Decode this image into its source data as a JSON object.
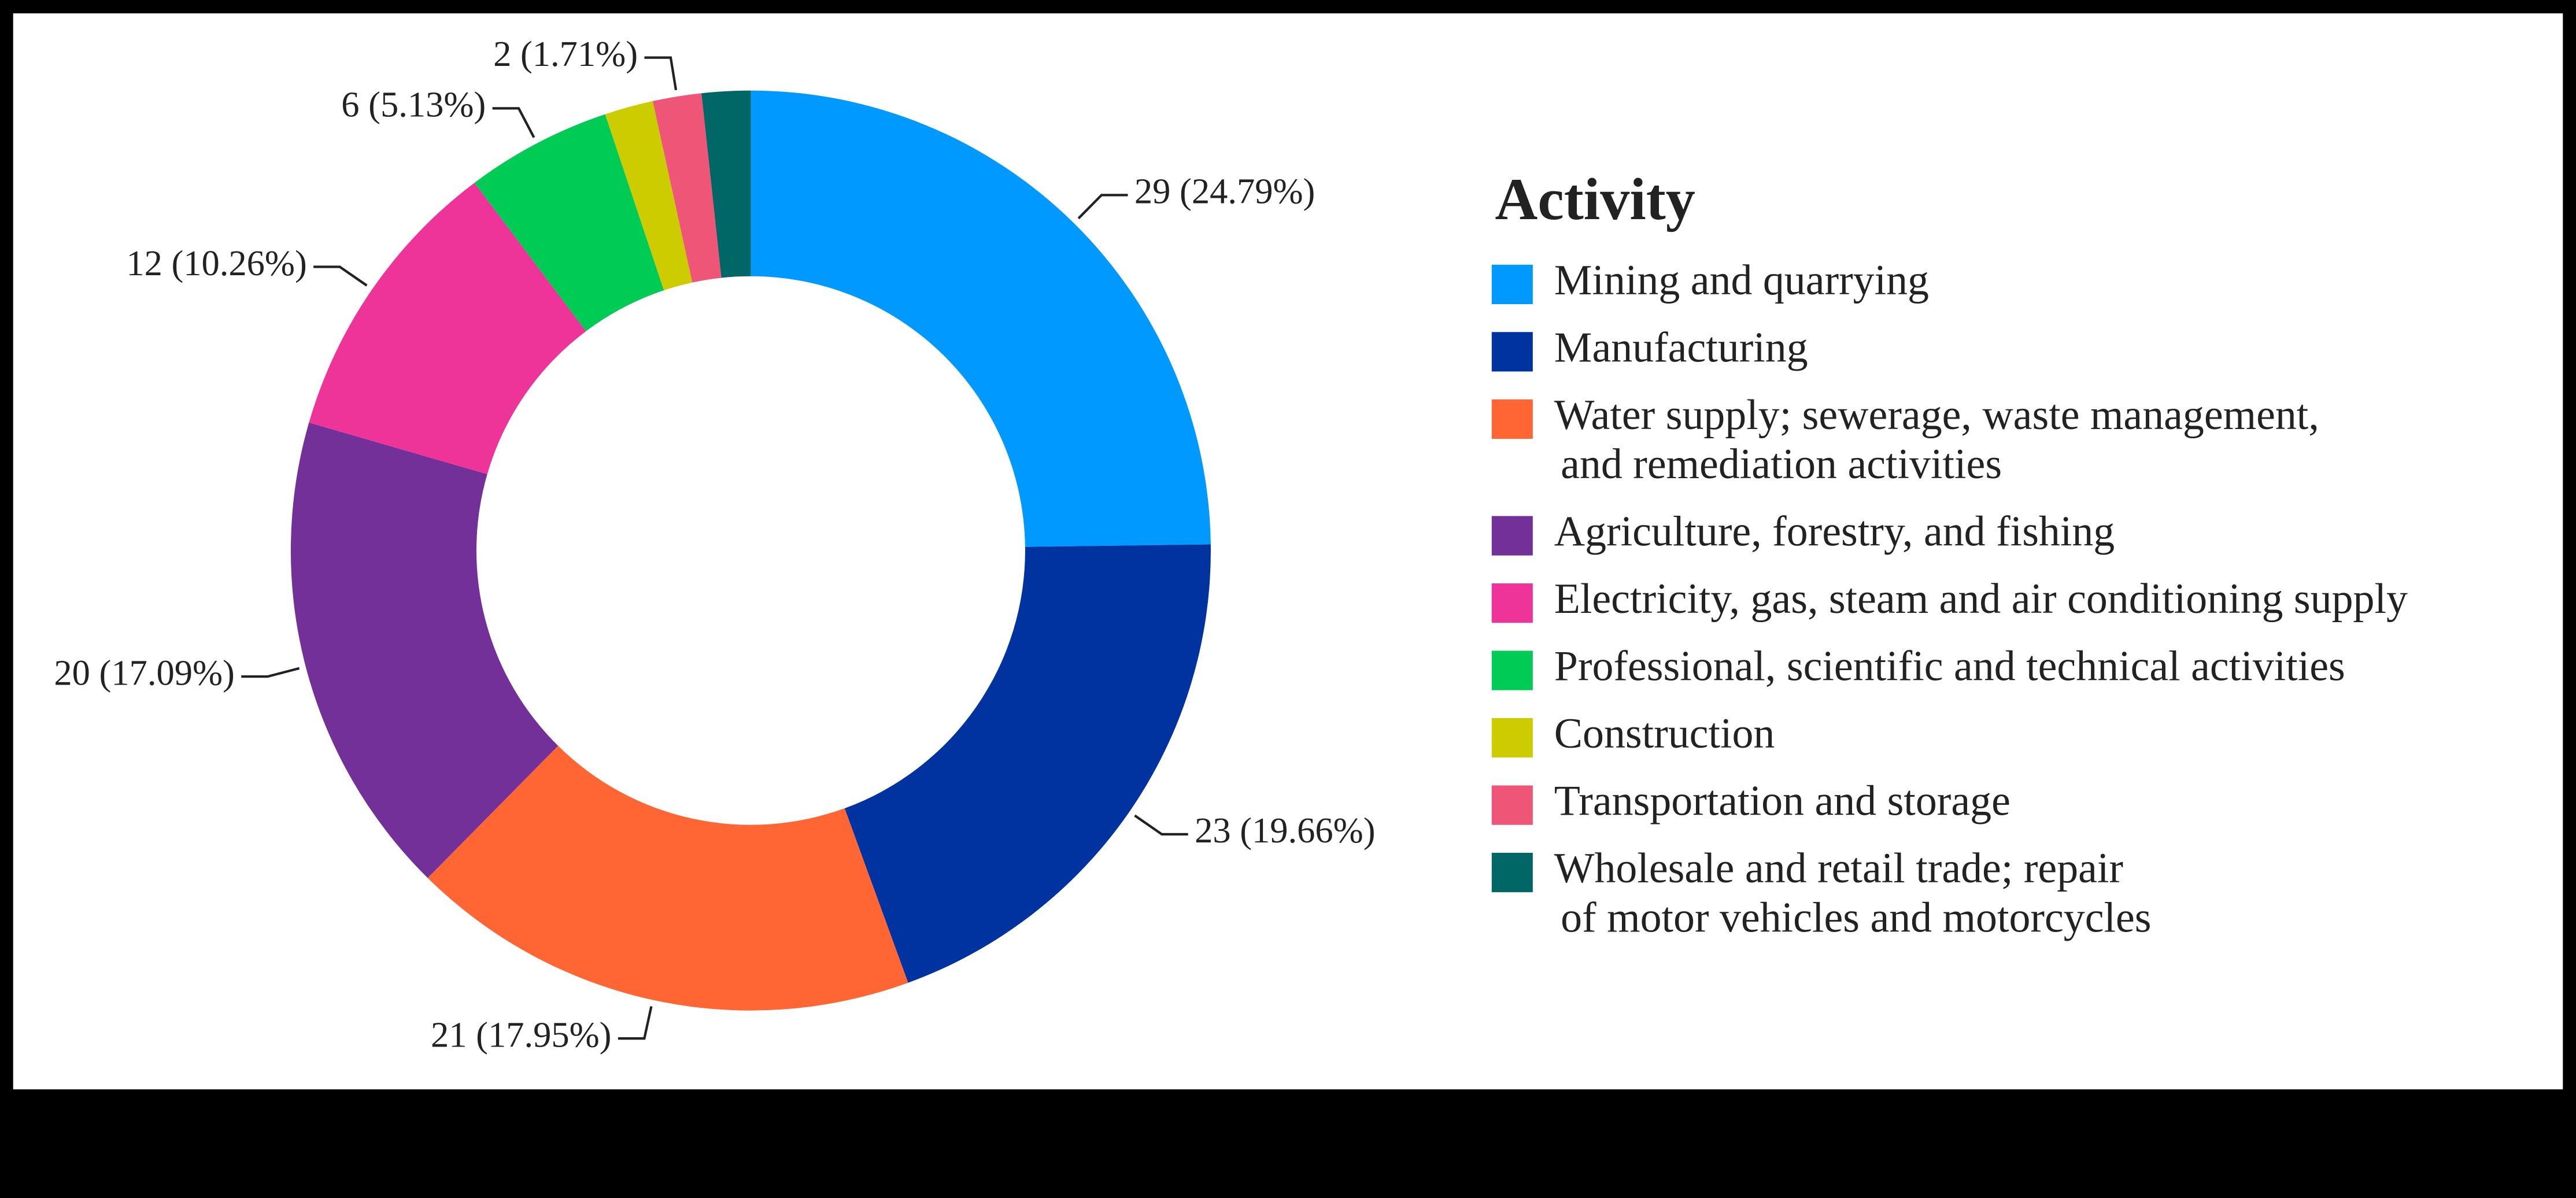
{
  "chart_data": {
    "type": "donut",
    "legend_title": "Activity",
    "categories": [
      "Mining and quarrying",
      "Manufacturing",
      "Water supply; sewerage, waste management,\nand remediation activities",
      "Agriculture, forestry, and fishing",
      "Electricity, gas, steam and air conditioning supply",
      "Professional, scientific and technical activities",
      "Construction",
      "Transportation and storage",
      "Wholesale and retail trade; repair\nof motor vehicles and motorcycles"
    ],
    "values": [
      29,
      23,
      21,
      20,
      12,
      6,
      2,
      2,
      2
    ],
    "value_labels": [
      "29 (24.79%)",
      "23 (19.66%)",
      "21 (17.95%)",
      "20 (17.09%)",
      "12 (10.26%)",
      "6 (5.13%)",
      null,
      "2 (1.71%)",
      null
    ],
    "colors": [
      "#0099ff",
      "#0033a0",
      "#ff6633",
      "#733099",
      "#ee3399",
      "#00cc55",
      "#cccc00",
      "#ee5577",
      "#006666"
    ],
    "legend": "right"
  }
}
